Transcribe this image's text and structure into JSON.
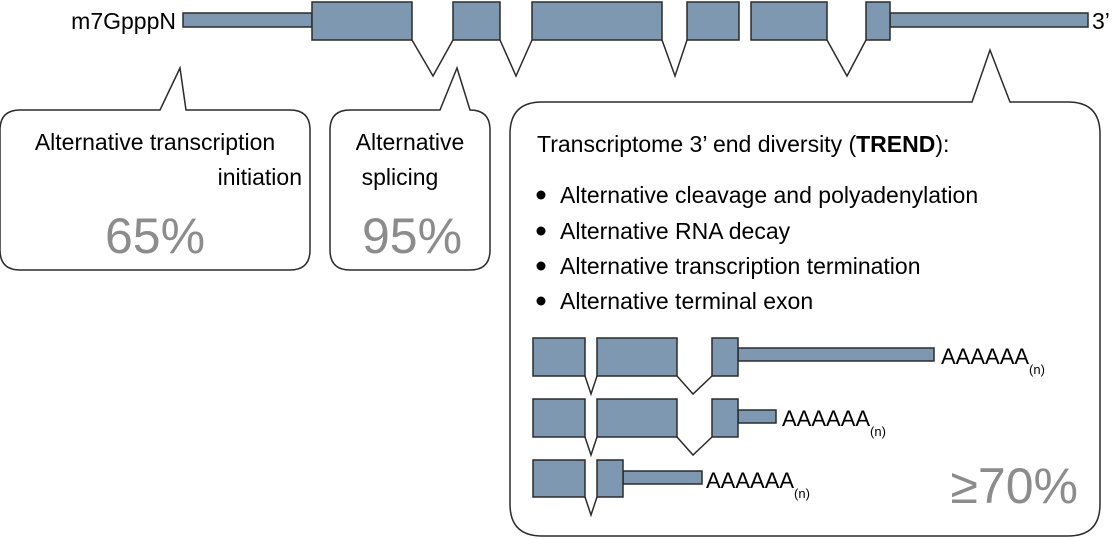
{
  "gene": {
    "cap_label": "m7GpppN",
    "end_label": "3’"
  },
  "callouts": {
    "initiation": {
      "line1": "Alternative transcription",
      "line2": "initiation",
      "percent": "65%"
    },
    "splicing": {
      "line1": "Alternative",
      "line2": "splicing",
      "percent": "95%"
    },
    "trend": {
      "title_prefix": "Transcriptome 3’ end diversity (",
      "title_acronym": "TREND",
      "title_suffix": "):",
      "bullets": [
        "Alternative cleavage and polyadenylation",
        "Alternative RNA decay",
        "Alternative transcription termination",
        "Alternative terminal exon"
      ],
      "isoforms": [
        {
          "tail": "AAAAAA",
          "sub": "(n)"
        },
        {
          "tail": "AAAAAA",
          "sub": "(n)"
        },
        {
          "tail": "AAAAAA",
          "sub": "(n)"
        }
      ],
      "percent": "≥70%"
    }
  },
  "colors": {
    "exon_fill": "#7f98b1",
    "outline": "#2b2b2b",
    "percent_text": "#8c8c8c"
  }
}
